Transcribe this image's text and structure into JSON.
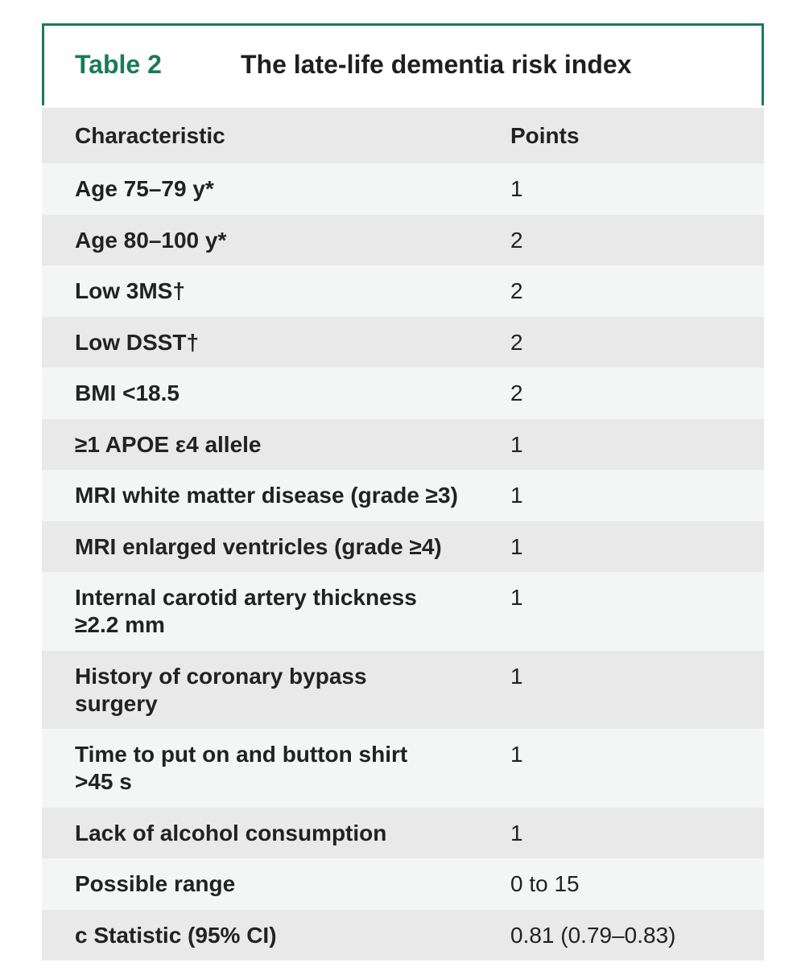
{
  "table": {
    "label": "Table 2",
    "title": "The late-life dementia risk index",
    "columns": [
      "Characteristic",
      "Points"
    ],
    "rows": [
      {
        "characteristic": "Age 75–79 y*",
        "points": "1"
      },
      {
        "characteristic": "Age 80–100 y*",
        "points": "2"
      },
      {
        "characteristic": "Low 3MS†",
        "points": "2"
      },
      {
        "characteristic": "Low DSST†",
        "points": "2"
      },
      {
        "characteristic": "BMI <18.5",
        "points": "2"
      },
      {
        "characteristic": "≥1 APOE ε4 allele",
        "points": "1"
      },
      {
        "characteristic": "MRI white matter disease (grade ≥3)",
        "points": "1"
      },
      {
        "characteristic": "MRI enlarged ventricles (grade ≥4)",
        "points": "1"
      },
      {
        "characteristic": "Internal carotid artery thickness\n≥2.2 mm",
        "points": "1"
      },
      {
        "characteristic": "History of coronary bypass\nsurgery",
        "points": "1"
      },
      {
        "characteristic": "Time to put on and button shirt\n>45 s",
        "points": "1"
      },
      {
        "characteristic": "Lack of alcohol consumption",
        "points": "1"
      },
      {
        "characteristic": "Possible range",
        "points": "0 to 15"
      },
      {
        "characteristic": "c Statistic (95% CI)",
        "points": "0.81 (0.79–0.83)"
      }
    ]
  },
  "colors": {
    "accent": "#1a7a5a",
    "row_dark": "#e9e9e9",
    "row_light": "#f4f5f5"
  }
}
